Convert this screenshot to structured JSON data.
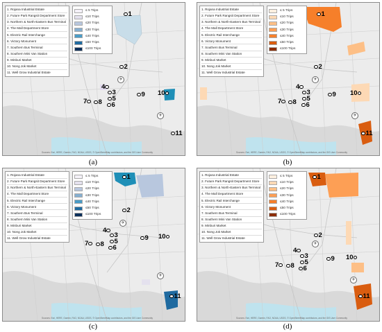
{
  "locations": [
    "1. Rojana Industrial Estate",
    "2. Future Park Rangsit Department Store",
    "3. Northern & North-Eastern Bus Terminal",
    "4. The Mall Department Store",
    "5. Electric Rail Interchange",
    "6. Victory Monument",
    "7. Southern Bus Terminal",
    "8. Southern Mini Van Station",
    "9. Minburi Market",
    "10. Nong Jok Market",
    "11. Well Grow Industrial Estate"
  ],
  "legend_labels": [
    "≤ 5 Trips",
    "≤10 Trips",
    "≤20 Trips",
    "≤30 Trips",
    "≤40 Trips",
    "≤50 Trips",
    "≤100 Trips"
  ],
  "palettes": {
    "blue": [
      "#f4f1f8",
      "#e4e1ee",
      "#b8c7de",
      "#86afd0",
      "#4a9cc7",
      "#1f6aa0",
      "#0c2f5a"
    ],
    "orange": [
      "#fff0e0",
      "#fdd9b5",
      "#fdbf86",
      "#fd9f55",
      "#f67f2a",
      "#d95d10",
      "#8c2d04"
    ]
  },
  "attribution": "Sources: Esri, HERE, Garmin, FAO, NOAA, USGS, © OpenStreetMap contributors, and the GIS User Community",
  "marker_numbers": [
    "1",
    "2",
    "3",
    "4",
    "5",
    "6",
    "7",
    "8",
    "9",
    "10",
    "11"
  ],
  "panels": [
    {
      "caption": "(a)",
      "palette": "blue"
    },
    {
      "caption": "(b)",
      "palette": "orange"
    },
    {
      "caption": "(c)",
      "palette": "blue"
    },
    {
      "caption": "(d)",
      "palette": "orange"
    }
  ]
}
